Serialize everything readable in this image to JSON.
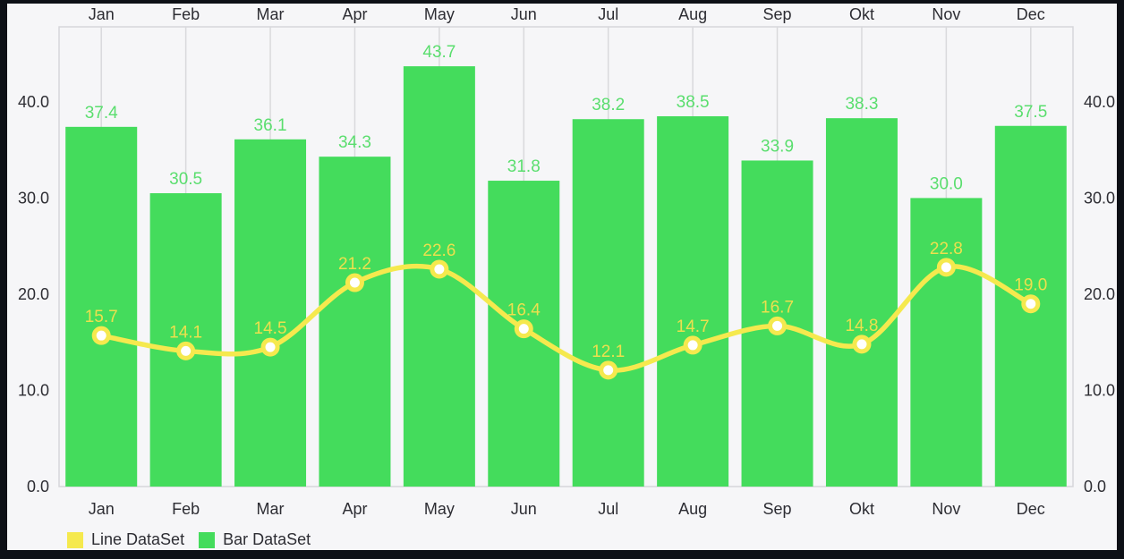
{
  "colors": {
    "frame_border": "#0d1016",
    "background": "#f6f6f8",
    "plot_border": "#d6d6da",
    "gridline": "#d9d9dc",
    "axis_text": "#2d2d33",
    "bar": "#44dc5c",
    "bar_label": "#5ade6e",
    "line": "#f5e94e",
    "line_label": "#ece04e",
    "point_fill": "#ffffff"
  },
  "legend": {
    "items": [
      {
        "label": "Line DataSet",
        "color": "#f5e94e"
      },
      {
        "label": "Bar DataSet",
        "color": "#44dc5c"
      }
    ]
  },
  "chart_data": {
    "type": "bar",
    "title": "",
    "xlabel": "",
    "ylabel": "",
    "categories": [
      "Jan",
      "Feb",
      "Mar",
      "Apr",
      "May",
      "Jun",
      "Jul",
      "Aug",
      "Sep",
      "Okt",
      "Nov",
      "Dec"
    ],
    "series": [
      {
        "name": "Bar DataSet",
        "type": "bar",
        "values": [
          37.4,
          30.5,
          36.1,
          34.3,
          43.7,
          31.8,
          38.2,
          38.5,
          33.9,
          38.3,
          30.0,
          37.5
        ],
        "labels": [
          "37.4",
          "30.5",
          "36.1",
          "34.3",
          "43.7",
          "31.8",
          "38.2",
          "38.5",
          "33.9",
          "38.3",
          "30.0",
          "37.5"
        ]
      },
      {
        "name": "Line DataSet",
        "type": "line",
        "values": [
          15.7,
          14.1,
          14.5,
          21.2,
          22.6,
          16.4,
          12.1,
          14.7,
          16.7,
          14.8,
          22.8,
          19.0
        ],
        "labels": [
          "15.7",
          "14.1",
          "14.5",
          "21.2",
          "22.6",
          "16.4",
          "12.1",
          "14.7",
          "16.7",
          "14.8",
          "22.8",
          "19.0"
        ]
      }
    ],
    "ylim": [
      0,
      47.8
    ],
    "yticks": [
      0,
      10,
      20,
      30,
      40
    ],
    "ytick_labels": [
      "0.0",
      "10.0",
      "20.0",
      "30.0",
      "40.0"
    ],
    "axis_sides": {
      "left": true,
      "right": true,
      "top": true,
      "bottom": true
    },
    "grid": "vertical-only",
    "legend_position": "bottom-left"
  }
}
